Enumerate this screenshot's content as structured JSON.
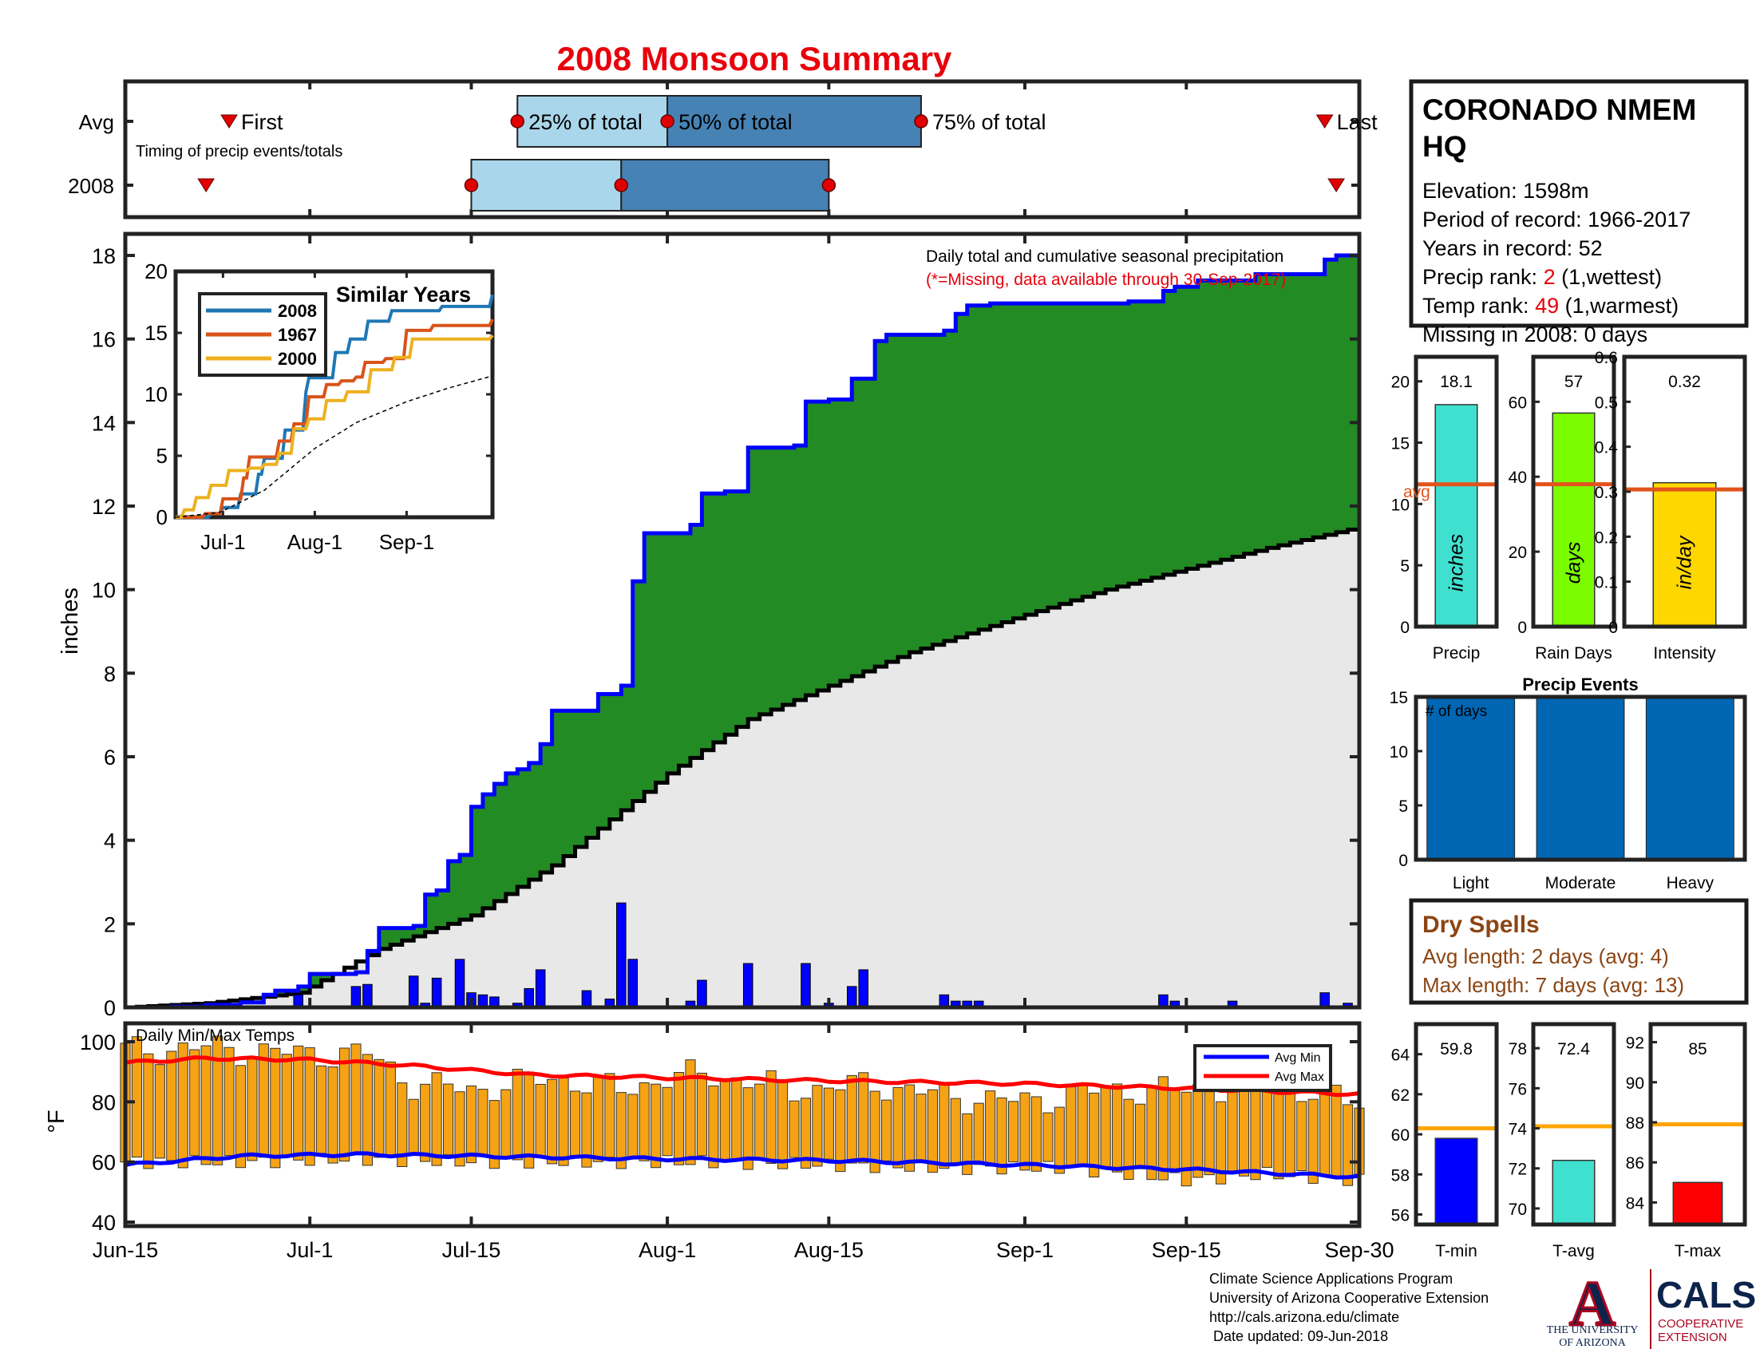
{
  "title": "2008 Monsoon Summary",
  "timing": {
    "row_labels": [
      "Avg",
      "2008"
    ],
    "note": "Timing of precip events/totals",
    "first_label": "First",
    "last_label": "Last",
    "q25_label": "25% of total",
    "q50_label": "50% of total",
    "q75_label": "75% of total",
    "avg": {
      "first": "2008-06-24",
      "q25": "2008-07-19",
      "q50": "2008-08-01",
      "q75": "2008-08-23",
      "last": "2008-09-27"
    },
    "year": {
      "first": "2008-06-22",
      "q25": "2008-07-15",
      "q50": "2008-07-28",
      "q75": "2008-08-15",
      "last": "2008-09-28"
    }
  },
  "colors": {
    "title_red": "#e8000b",
    "green_fill": "#238b23",
    "cum_line": "#0000ff",
    "avg_fill": "#e8e8e8",
    "box_light": "#a9d6ea",
    "box_dark": "#4682b4",
    "marker_red": "#e00000",
    "bar_orange": "#f5a314",
    "avg_max_red": "#ff0000",
    "avg_min_blue": "#0000ff",
    "dry_brown": "#8b4513",
    "avg_line": "#e2541c",
    "precip_bar": "#40e0d0",
    "days_bar": "#7cfc00",
    "intensity_bar": "#ffd700",
    "events_bar": "#0066b3",
    "tmin_bar": "#0000ff",
    "tavg_bar": "#40e0d0",
    "tmax_bar": "#ff0000",
    "thresh_orange": "#ffa500"
  },
  "main_chart": {
    "note": "Daily total and cumulative seasonal precipitation",
    "missing_note": "(*=Missing, data available through 30-Sep-2017)",
    "ylabel": "inches",
    "x_ticks": [
      "Jun-15",
      "Jul-1",
      "Jul-15",
      "Aug-1",
      "Aug-15",
      "Sep-1",
      "Sep-15",
      "Sep-30"
    ],
    "y_ticks": [
      "0",
      "2",
      "4",
      "6",
      "8",
      "10",
      "12",
      "14",
      "16",
      "18"
    ]
  },
  "chart_data": [
    {
      "type": "area",
      "name": "cumulative",
      "x_range": [
        "2008-06-15",
        "2008-09-30"
      ],
      "ylim": [
        0,
        18.5
      ],
      "ylabel": "inches",
      "cumulative_2008": [
        [
          "2008-06-15",
          0.0
        ],
        [
          "2008-06-19",
          0.02
        ],
        [
          "2008-06-22",
          0.06
        ],
        [
          "2008-06-25",
          0.12
        ],
        [
          "2008-06-27",
          0.3
        ],
        [
          "2008-06-28",
          0.4
        ],
        [
          "2008-06-30",
          0.5
        ],
        [
          "2008-07-01",
          0.8
        ],
        [
          "2008-07-05",
          0.84
        ],
        [
          "2008-07-06",
          1.35
        ],
        [
          "2008-07-07",
          1.9
        ],
        [
          "2008-07-10",
          1.95
        ],
        [
          "2008-07-11",
          2.7
        ],
        [
          "2008-07-12",
          2.8
        ],
        [
          "2008-07-13",
          3.5
        ],
        [
          "2008-07-14",
          3.65
        ],
        [
          "2008-07-15",
          4.8
        ],
        [
          "2008-07-16",
          5.1
        ],
        [
          "2008-07-17",
          5.35
        ],
        [
          "2008-07-18",
          5.6
        ],
        [
          "2008-07-19",
          5.7
        ],
        [
          "2008-07-20",
          5.85
        ],
        [
          "2008-07-21",
          6.3
        ],
        [
          "2008-07-22",
          7.1
        ],
        [
          "2008-07-26",
          7.5
        ],
        [
          "2008-07-28",
          7.7
        ],
        [
          "2008-07-29",
          10.2
        ],
        [
          "2008-07-30",
          11.35
        ],
        [
          "2008-08-03",
          11.55
        ],
        [
          "2008-08-04",
          12.3
        ],
        [
          "2008-08-06",
          12.35
        ],
        [
          "2008-08-08",
          13.4
        ],
        [
          "2008-08-12",
          13.45
        ],
        [
          "2008-08-13",
          14.5
        ],
        [
          "2008-08-15",
          14.55
        ],
        [
          "2008-08-17",
          15.05
        ],
        [
          "2008-08-19",
          15.95
        ],
        [
          "2008-08-20",
          16.1
        ],
        [
          "2008-08-25",
          16.2
        ],
        [
          "2008-08-26",
          16.6
        ],
        [
          "2008-08-27",
          16.8
        ],
        [
          "2008-08-29",
          16.85
        ],
        [
          "2008-09-10",
          16.9
        ],
        [
          "2008-09-13",
          17.15
        ],
        [
          "2008-09-14",
          17.25
        ],
        [
          "2008-09-16",
          17.4
        ],
        [
          "2008-09-21",
          17.55
        ],
        [
          "2008-09-27",
          17.9
        ],
        [
          "2008-09-28",
          18.0
        ],
        [
          "2008-09-30",
          18.1
        ]
      ],
      "cumulative_avg": [
        [
          "2008-06-15",
          0.0
        ],
        [
          "2008-06-22",
          0.1
        ],
        [
          "2008-06-30",
          0.35
        ],
        [
          "2008-07-07",
          1.4
        ],
        [
          "2008-07-15",
          2.2
        ],
        [
          "2008-07-22",
          3.4
        ],
        [
          "2008-08-01",
          5.6
        ],
        [
          "2008-08-08",
          6.9
        ],
        [
          "2008-08-15",
          7.7
        ],
        [
          "2008-08-22",
          8.5
        ],
        [
          "2008-09-01",
          9.4
        ],
        [
          "2008-09-08",
          10.0
        ],
        [
          "2008-09-15",
          10.5
        ],
        [
          "2008-09-22",
          11.0
        ],
        [
          "2008-09-30",
          11.5
        ]
      ],
      "daily_precip": [
        [
          "2008-06-30",
          0.3
        ],
        [
          "2008-07-05",
          0.5
        ],
        [
          "2008-07-06",
          0.55
        ],
        [
          "2008-07-10",
          0.75
        ],
        [
          "2008-07-11",
          0.1
        ],
        [
          "2008-07-12",
          0.7
        ],
        [
          "2008-07-14",
          1.15
        ],
        [
          "2008-07-15",
          0.35
        ],
        [
          "2008-07-16",
          0.3
        ],
        [
          "2008-07-17",
          0.25
        ],
        [
          "2008-07-19",
          0.1
        ],
        [
          "2008-07-20",
          0.45
        ],
        [
          "2008-07-21",
          0.9
        ],
        [
          "2008-07-25",
          0.4
        ],
        [
          "2008-07-27",
          0.2
        ],
        [
          "2008-07-28",
          2.5
        ],
        [
          "2008-07-29",
          1.15
        ],
        [
          "2008-08-03",
          0.15
        ],
        [
          "2008-08-04",
          0.65
        ],
        [
          "2008-08-08",
          1.05
        ],
        [
          "2008-08-13",
          1.05
        ],
        [
          "2008-08-15",
          0.1
        ],
        [
          "2008-08-17",
          0.5
        ],
        [
          "2008-08-18",
          0.9
        ],
        [
          "2008-08-25",
          0.3
        ],
        [
          "2008-08-26",
          0.15
        ],
        [
          "2008-08-27",
          0.15
        ],
        [
          "2008-08-28",
          0.15
        ],
        [
          "2008-09-13",
          0.3
        ],
        [
          "2008-09-14",
          0.15
        ],
        [
          "2008-09-19",
          0.15
        ],
        [
          "2008-09-27",
          0.35
        ],
        [
          "2008-09-29",
          0.1
        ]
      ]
    },
    {
      "type": "line",
      "name": "similar_years",
      "title": "Similar Years",
      "x_ticks": [
        "Jul-1",
        "Aug-1",
        "Sep-1"
      ],
      "ylim": [
        0,
        20
      ],
      "y_ticks": [
        "0",
        "5",
        "10",
        "15",
        "20"
      ],
      "series": [
        {
          "name": "2008",
          "color": "#1f77b4",
          "points": [
            [
              "2008-06-15",
              0
            ],
            [
              "2008-06-27",
              0.3
            ],
            [
              "2008-07-01",
              0.8
            ],
            [
              "2008-07-07",
              1.9
            ],
            [
              "2008-07-13",
              3.5
            ],
            [
              "2008-07-15",
              4.8
            ],
            [
              "2008-07-22",
              7.1
            ],
            [
              "2008-07-29",
              10.2
            ],
            [
              "2008-07-30",
              11.35
            ],
            [
              "2008-08-08",
              13.4
            ],
            [
              "2008-08-13",
              14.5
            ],
            [
              "2008-08-19",
              15.95
            ],
            [
              "2008-08-27",
              16.8
            ],
            [
              "2008-09-13",
              17.15
            ],
            [
              "2008-09-30",
              18.1
            ]
          ]
        },
        {
          "name": "1967",
          "color": "#d95319",
          "points": [
            [
              "2008-06-15",
              0
            ],
            [
              "2008-06-25",
              0.3
            ],
            [
              "2008-07-01",
              1.5
            ],
            [
              "2008-07-08",
              3.2
            ],
            [
              "2008-07-10",
              4.9
            ],
            [
              "2008-07-20",
              6.2
            ],
            [
              "2008-07-25",
              7.6
            ],
            [
              "2008-07-30",
              9.8
            ],
            [
              "2008-08-05",
              10.8
            ],
            [
              "2008-08-10",
              11.1
            ],
            [
              "2008-08-15",
              11.4
            ],
            [
              "2008-08-18",
              12.6
            ],
            [
              "2008-08-25",
              12.9
            ],
            [
              "2008-09-01",
              15.2
            ],
            [
              "2008-09-10",
              15.6
            ],
            [
              "2008-09-30",
              16.1
            ]
          ]
        },
        {
          "name": "2000",
          "color": "#edb120",
          "points": [
            [
              "2008-06-15",
              0
            ],
            [
              "2008-06-18",
              0.6
            ],
            [
              "2008-06-22",
              1.6
            ],
            [
              "2008-06-27",
              2.6
            ],
            [
              "2008-07-03",
              3.8
            ],
            [
              "2008-07-10",
              4.0
            ],
            [
              "2008-07-15",
              4.3
            ],
            [
              "2008-07-20",
              5.2
            ],
            [
              "2008-07-25",
              7.2
            ],
            [
              "2008-07-30",
              8.0
            ],
            [
              "2008-08-05",
              9.5
            ],
            [
              "2008-08-12",
              10.2
            ],
            [
              "2008-08-20",
              12.0
            ],
            [
              "2008-08-28",
              13.0
            ],
            [
              "2008-09-03",
              14.5
            ],
            [
              "2008-09-30",
              14.8
            ]
          ]
        },
        {
          "name": "avg",
          "color": "#000000",
          "points": [
            [
              "2008-06-15",
              0
            ],
            [
              "2008-06-30",
              0.4
            ],
            [
              "2008-07-15",
              2.2
            ],
            [
              "2008-08-01",
              5.6
            ],
            [
              "2008-08-15",
              7.7
            ],
            [
              "2008-09-01",
              9.4
            ],
            [
              "2008-09-15",
              10.5
            ],
            [
              "2008-09-30",
              11.5
            ]
          ]
        }
      ]
    },
    {
      "type": "bar",
      "name": "daily_temps",
      "title": "Daily Min/Max Temps",
      "ylabel": "°F",
      "ylim": [
        40,
        100
      ],
      "y_ticks": [
        "40",
        "60",
        "80",
        "100"
      ],
      "legend": [
        "Avg Min",
        "Avg Max"
      ],
      "daily_max_anchor": [
        [
          "2008-06-15",
          97
        ],
        [
          "2008-06-22",
          98
        ],
        [
          "2008-06-30",
          96
        ],
        [
          "2008-07-06",
          96
        ],
        [
          "2008-07-10",
          86
        ],
        [
          "2008-07-15",
          84
        ],
        [
          "2008-07-22",
          88
        ],
        [
          "2008-07-28",
          84
        ],
        [
          "2008-08-01",
          88
        ],
        [
          "2008-08-05",
          89
        ],
        [
          "2008-08-12",
          84
        ],
        [
          "2008-08-19",
          86
        ],
        [
          "2008-08-25",
          82
        ],
        [
          "2008-09-01",
          80
        ],
        [
          "2008-09-08",
          84
        ],
        [
          "2008-09-15",
          84
        ],
        [
          "2008-09-22",
          86
        ],
        [
          "2008-09-30",
          80
        ]
      ],
      "daily_min_anchor": [
        [
          "2008-06-15",
          60
        ],
        [
          "2008-06-25",
          60
        ],
        [
          "2008-07-05",
          61
        ],
        [
          "2008-07-15",
          60
        ],
        [
          "2008-07-25",
          60
        ],
        [
          "2008-08-05",
          60
        ],
        [
          "2008-08-15",
          59
        ],
        [
          "2008-08-25",
          58
        ],
        [
          "2008-09-05",
          58
        ],
        [
          "2008-09-15",
          54
        ],
        [
          "2008-09-22",
          56
        ],
        [
          "2008-09-30",
          54
        ]
      ],
      "avg_max": [
        [
          "2008-06-15",
          93
        ],
        [
          "2008-06-22",
          94.5
        ],
        [
          "2008-07-01",
          94
        ],
        [
          "2008-07-10",
          92
        ],
        [
          "2008-07-20",
          89
        ],
        [
          "2008-08-01",
          88
        ],
        [
          "2008-08-15",
          87
        ],
        [
          "2008-09-01",
          86
        ],
        [
          "2008-09-15",
          84.5
        ],
        [
          "2008-09-30",
          82.5
        ]
      ],
      "avg_min": [
        [
          "2008-06-15",
          59
        ],
        [
          "2008-06-25",
          62
        ],
        [
          "2008-07-05",
          62.5
        ],
        [
          "2008-07-15",
          62
        ],
        [
          "2008-08-01",
          61
        ],
        [
          "2008-08-15",
          60.5
        ],
        [
          "2008-09-01",
          59
        ],
        [
          "2008-09-15",
          57.5
        ],
        [
          "2008-09-30",
          55
        ]
      ]
    },
    {
      "type": "bar",
      "name": "precip_total",
      "categories": [
        "Precip"
      ],
      "values": [
        18.1
      ],
      "avg": 11.6,
      "ylim": [
        0,
        22
      ],
      "y_ticks": [
        "0",
        "5",
        "10",
        "15",
        "20"
      ],
      "value_label": "18.1",
      "bar_text": "inches",
      "xlabel": "Precip",
      "avg_label": "avg"
    },
    {
      "type": "bar",
      "name": "rain_days",
      "categories": [
        "Rain Days"
      ],
      "values": [
        57
      ],
      "avg": 38,
      "ylim": [
        0,
        72
      ],
      "y_ticks": [
        "0",
        "20",
        "40",
        "60"
      ],
      "value_label": "57",
      "bar_text": "days",
      "xlabel": "Rain Days"
    },
    {
      "type": "bar",
      "name": "intensity",
      "categories": [
        "Intensity"
      ],
      "values": [
        0.32
      ],
      "avg": 0.305,
      "ylim": [
        0,
        0.6
      ],
      "y_ticks": [
        "0",
        "0.1",
        "0.2",
        "0.3",
        "0.4",
        "0.5",
        "0.6"
      ],
      "value_label": "0.32",
      "bar_text": "in/day",
      "xlabel": "Intensity"
    },
    {
      "type": "bar",
      "name": "precip_events",
      "title": "Precip Events",
      "ylabel": "# of days",
      "categories": [
        "Light",
        "Moderate",
        "Heavy"
      ],
      "values": [
        15,
        15,
        15
      ],
      "ylim": [
        0,
        15
      ],
      "y_ticks": [
        "0",
        "5",
        "10",
        "15"
      ]
    },
    {
      "type": "bar",
      "name": "t_min",
      "categories": [
        "T-min"
      ],
      "values": [
        59.8
      ],
      "avg": 60.3,
      "ylim": [
        55.5,
        65.5
      ],
      "y_ticks": [
        "56",
        "58",
        "60",
        "62",
        "64"
      ],
      "value_label": "59.8",
      "xlabel": "T-min"
    },
    {
      "type": "bar",
      "name": "t_avg",
      "categories": [
        "T-avg"
      ],
      "values": [
        72.4
      ],
      "avg": 74.1,
      "ylim": [
        69.2,
        79.2
      ],
      "y_ticks": [
        "70",
        "72",
        "74",
        "76",
        "78"
      ],
      "value_label": "72.4",
      "xlabel": "T-avg"
    },
    {
      "type": "bar",
      "name": "t_max",
      "categories": [
        "T-max"
      ],
      "values": [
        85
      ],
      "avg": 87.9,
      "ylim": [
        82.9,
        92.9
      ],
      "y_ticks": [
        "84",
        "86",
        "88",
        "90",
        "92"
      ],
      "value_label": "85",
      "xlabel": "T-max"
    }
  ],
  "station": {
    "name_line1": "CORONADO NMEM",
    "name_line2": "HQ",
    "elevation": "Elevation: 1598m",
    "period": "Period of record: 1966-2017",
    "years": "Years in record: 52",
    "precip_rank_prefix": "Precip rank: ",
    "precip_rank_value": "2",
    "precip_rank_suffix": " (1,wettest)",
    "temp_rank_prefix": "Temp rank: ",
    "temp_rank_value": "49",
    "temp_rank_suffix": " (1,warmest)",
    "missing": "Missing in 2008: 0 days"
  },
  "dry_spells": {
    "title": "Dry Spells",
    "avg_length": "Avg length: 2 days (avg: 4)",
    "max_length": "Max length: 7 days (avg: 13)"
  },
  "footer": {
    "line1": "Climate Science Applications Program",
    "line2": "University of Arizona Cooperative Extension",
    "line3": "http://cals.arizona.edu/climate",
    "line4": " Date updated: 09-Jun-2018"
  },
  "logos": {
    "ua_letter": "A",
    "ua_line1": "THE UNIVERSITY",
    "ua_line2": "OF ARIZONA",
    "cals": "CALS",
    "cals_line1": "COOPERATIVE",
    "cals_line2": "EXTENSION"
  }
}
